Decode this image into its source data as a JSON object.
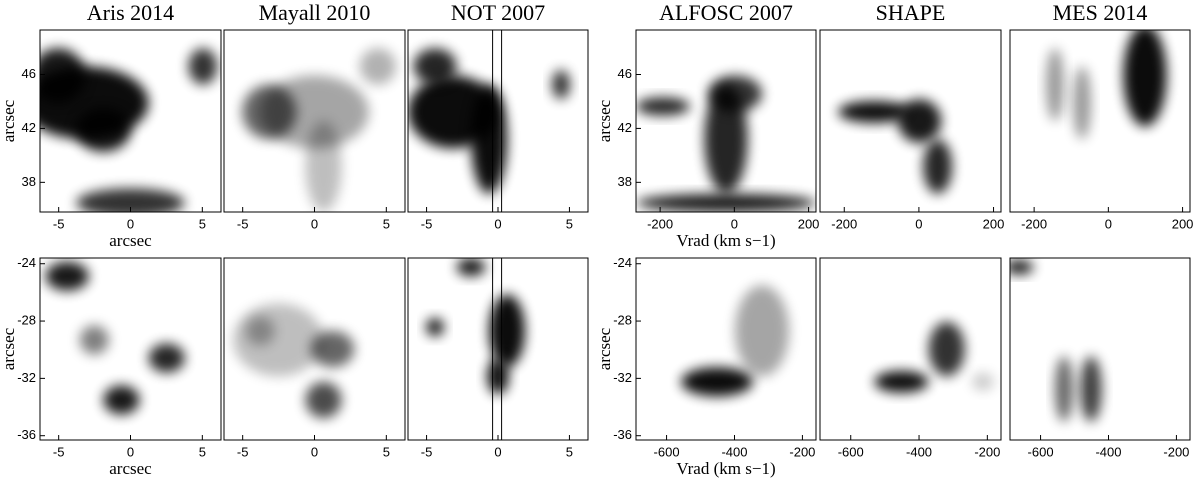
{
  "chart_data": [
    {
      "type": "image",
      "title": "Aris 2014",
      "xlim": [
        -6.3,
        6.3
      ],
      "xticks": [
        -5,
        0,
        5
      ],
      "ylim": [
        35.8,
        49.3
      ],
      "yticks": [
        38,
        42,
        46
      ],
      "xlabel": "arcsec",
      "ylabel": "arcsec"
    },
    {
      "type": "image",
      "title": "Mayall 2010",
      "xlim": [
        -6.3,
        6.3
      ],
      "xticks": [
        -5,
        0,
        5
      ]
    },
    {
      "type": "image",
      "title": "NOT 2007",
      "xlim": [
        -6.3,
        6.3
      ],
      "xticks": [
        -5,
        0,
        5
      ]
    },
    {
      "type": "image",
      "title": "ALFOSC 2007",
      "xlim": [
        -265,
        220
      ],
      "xticks": [
        -200,
        0,
        200
      ],
      "ylim": [
        35.8,
        49.3
      ],
      "yticks": [
        38,
        42,
        46
      ],
      "xlabel": "Vrad (km s−1)",
      "ylabel": "arcsec"
    },
    {
      "type": "image",
      "title": "SHAPE",
      "xlim": [
        -265,
        220
      ],
      "xticks": [
        -200,
        0,
        200
      ]
    },
    {
      "type": "image",
      "title": "MES 2014",
      "xlim": [
        -265,
        220
      ],
      "xticks": [
        -200,
        0,
        200
      ]
    },
    {
      "type": "image",
      "xlim": [
        -6.3,
        6.3
      ],
      "xticks": [
        -5,
        0,
        5
      ],
      "ylim": [
        -36.3,
        -23.6
      ],
      "yticks": [
        -24,
        -28,
        -32,
        -36
      ],
      "xlabel": "arcsec",
      "ylabel": "arcsec"
    },
    {
      "type": "image",
      "xlim": [
        -6.3,
        6.3
      ],
      "xticks": [
        -5,
        0,
        5
      ]
    },
    {
      "type": "image",
      "xlim": [
        -6.3,
        6.3
      ],
      "xticks": [
        -5,
        0,
        5
      ]
    },
    {
      "type": "image",
      "xlim": [
        -690,
        -160
      ],
      "xticks": [
        -600,
        -400,
        -200
      ],
      "ylim": [
        -36.3,
        -23.6
      ],
      "yticks": [
        -24,
        -28,
        -32,
        -36
      ],
      "xlabel": "Vrad (km s−1)",
      "ylabel": "arcsec"
    },
    {
      "type": "image",
      "xlim": [
        -690,
        -160
      ],
      "xticks": [
        -600,
        -400,
        -200
      ]
    },
    {
      "type": "image",
      "xlim": [
        -690,
        -160
      ],
      "xticks": [
        -600,
        -400,
        -200
      ]
    }
  ]
}
